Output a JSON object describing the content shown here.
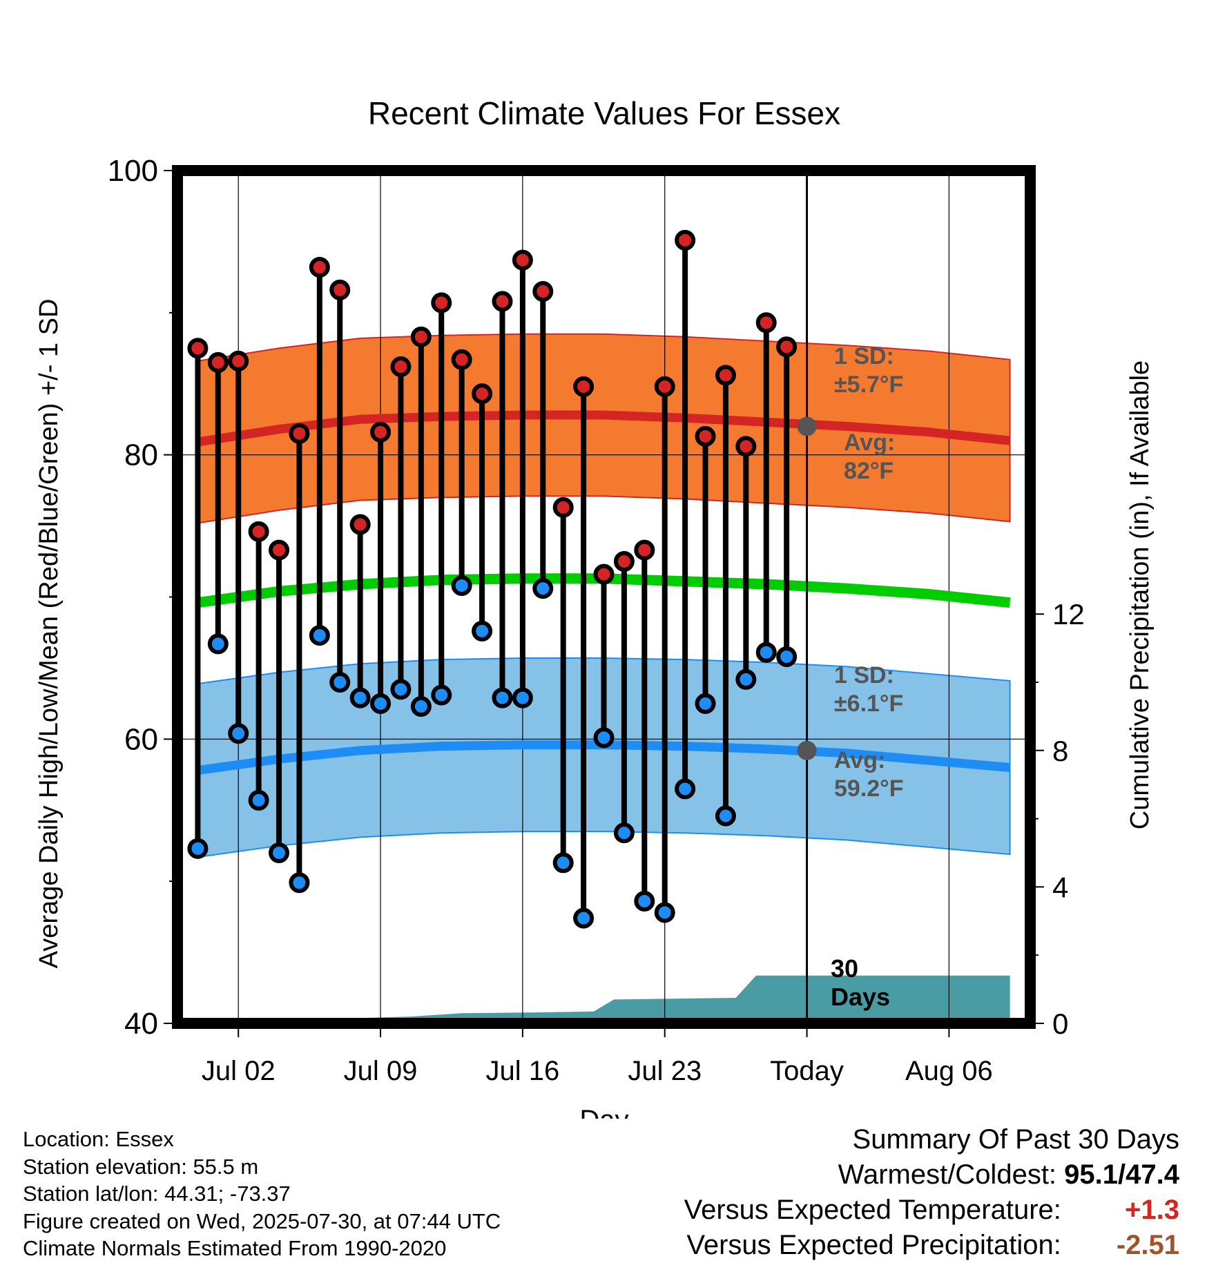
{
  "chart_data": {
    "type": "line",
    "title": "Recent Climate Values For Essex",
    "xlabel": "Day",
    "ylabel": "Average Daily High/Low/Mean (Red/Blue/Green) +/- 1 SD",
    "y2label": "Cumulative Precipitation (in), If Available",
    "ylim": [
      40,
      100
    ],
    "y_ticks": [
      "40",
      "60",
      "80",
      "100"
    ],
    "y2lim": [
      0,
      25
    ],
    "y2_ticks": [
      "0",
      "4",
      "8",
      "12"
    ],
    "x_range_days": [
      -1,
      41
    ],
    "x_ticks": [
      {
        "day": 2,
        "label": "Jul 02"
      },
      {
        "day": 9,
        "label": "Jul 09"
      },
      {
        "day": 16,
        "label": "Jul 16"
      },
      {
        "day": 23,
        "label": "Jul 23"
      },
      {
        "day": 30,
        "label": "Today"
      },
      {
        "day": 37,
        "label": "Aug 06"
      }
    ],
    "grid": true,
    "colors": {
      "high_band": "#f47a2f",
      "high_mean": "#d42424",
      "low_band": "#86c2e8",
      "low_mean": "#1e8cf5",
      "daily_mean": "#00cc00",
      "precip": "#4a9ca4",
      "high_dot": "#d42424",
      "low_dot": "#1e8cf5",
      "avg_marker": "#555555"
    },
    "normal_curve_days": [
      0,
      4,
      8,
      12,
      16,
      20,
      24,
      28,
      32,
      36,
      40
    ],
    "normal_high_mean": [
      80.9,
      81.8,
      82.5,
      82.7,
      82.8,
      82.8,
      82.6,
      82.3,
      82.0,
      81.6,
      81.0
    ],
    "normal_high_upper": [
      86.6,
      87.5,
      88.2,
      88.4,
      88.5,
      88.5,
      88.3,
      88.0,
      87.7,
      87.3,
      86.7
    ],
    "normal_high_lower": [
      75.2,
      76.1,
      76.8,
      77.0,
      77.1,
      77.1,
      76.9,
      76.6,
      76.3,
      75.9,
      75.3
    ],
    "normal_mean": [
      69.6,
      70.4,
      70.9,
      71.2,
      71.3,
      71.3,
      71.1,
      70.9,
      70.6,
      70.2,
      69.6
    ],
    "normal_low_mean": [
      57.8,
      58.6,
      59.2,
      59.5,
      59.6,
      59.6,
      59.5,
      59.3,
      59.0,
      58.5,
      58.0
    ],
    "normal_low_upper": [
      63.9,
      64.7,
      65.3,
      65.6,
      65.7,
      65.7,
      65.6,
      65.4,
      65.1,
      64.6,
      64.1
    ],
    "normal_low_lower": [
      51.7,
      52.5,
      53.1,
      53.4,
      53.5,
      53.5,
      53.4,
      53.2,
      52.9,
      52.4,
      51.9
    ],
    "daily_days": [
      0,
      1,
      2,
      3,
      4,
      5,
      6,
      7,
      8,
      9,
      10,
      11,
      12,
      13,
      14,
      15,
      16,
      17,
      18,
      19,
      20,
      21,
      22,
      23,
      24,
      25,
      26,
      27,
      28,
      29
    ],
    "daily_high": [
      87.5,
      86.5,
      86.6,
      74.6,
      73.3,
      81.5,
      93.2,
      91.6,
      75.1,
      81.6,
      86.2,
      88.3,
      90.7,
      86.7,
      84.3,
      90.8,
      93.7,
      91.5,
      76.3,
      84.8,
      71.6,
      72.5,
      73.3,
      84.8,
      95.1,
      81.3,
      85.6,
      80.6,
      89.3,
      87.6
    ],
    "daily_low": [
      52.3,
      66.7,
      60.4,
      55.7,
      52.0,
      49.9,
      67.3,
      64.0,
      62.9,
      62.5,
      63.5,
      62.3,
      63.1,
      70.8,
      67.6,
      62.9,
      62.9,
      70.6,
      51.3,
      47.4,
      60.1,
      53.4,
      48.6,
      47.8,
      56.5,
      62.5,
      54.6,
      64.2,
      66.1,
      65.8
    ],
    "precip_steps": [
      {
        "day": -0.5,
        "value": 0.0
      },
      {
        "day": 3,
        "value": 0.1
      },
      {
        "day": 7.5,
        "value": 0.15
      },
      {
        "day": 10.5,
        "value": 0.2
      },
      {
        "day": 13,
        "value": 0.3
      },
      {
        "day": 16.5,
        "value": 0.32
      },
      {
        "day": 19.5,
        "value": 0.35
      },
      {
        "day": 20.5,
        "value": 0.7
      },
      {
        "day": 26.5,
        "value": 0.75
      },
      {
        "day": 27.5,
        "value": 1.4
      },
      {
        "day": 30,
        "value": 1.4
      },
      {
        "day": 40,
        "value": 1.4
      }
    ],
    "today_day": 30,
    "annotations": {
      "high_sd_line1": "1 SD:",
      "high_sd_line2": "±5.7°F",
      "high_avg_line1": "Avg:",
      "high_avg_line2": "82°F",
      "low_sd_line1": "1 SD:",
      "low_sd_line2": "±6.1°F",
      "low_avg_line1": "Avg:",
      "low_avg_line2": "59.2°F",
      "days_line1": "30",
      "days_line2": "Days"
    },
    "today_high_avg": 82,
    "today_low_avg": 59.2
  },
  "info": {
    "location": "Location: Essex",
    "elevation": "Station elevation: 55.5 m",
    "latlon": "Station lat/lon: 44.31; -73.37",
    "created": "Figure created on Wed, 2025-07-30, at 07:44 UTC",
    "normals": "Climate Normals Estimated From 1990-2020"
  },
  "summary": {
    "title": "Summary Of Past 30 Days",
    "warm_cold_label": "Warmest/Coldest:",
    "warm_cold_value": "95.1/47.4",
    "temp_label": "Versus Expected Temperature:",
    "temp_value": "+1.3",
    "temp_color": "#d42424",
    "precip_label": "Versus Expected Precipitation:",
    "precip_value": "-2.51",
    "precip_color": "#a0522d"
  }
}
